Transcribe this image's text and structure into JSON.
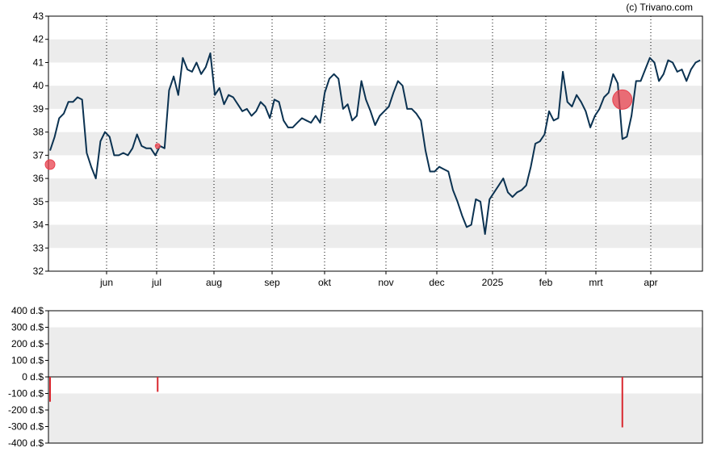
{
  "copyright": "(c) Trivano.com",
  "colors": {
    "price_line": "#0b3251",
    "band": "#ececec",
    "marker": "#e8414e",
    "bar": "#d9272e",
    "axis": "#000000"
  },
  "chart_data": [
    {
      "type": "line",
      "name": "price",
      "x_ticks": [
        "jun",
        "jul",
        "aug",
        "sep",
        "okt",
        "nov",
        "dec",
        "2025",
        "feb",
        "mrt",
        "apr"
      ],
      "y_ticks": [
        "32",
        "33",
        "34",
        "35",
        "36",
        "37",
        "38",
        "39",
        "40",
        "41",
        "42",
        "43"
      ],
      "ylim": [
        32,
        43
      ],
      "x_range": [
        0,
        285
      ],
      "grid": "dotted vertical lines at month ticks, alternating gray horizontal bands",
      "series": [
        {
          "x": [
            0,
            2,
            4,
            6,
            8,
            10,
            12,
            14,
            16,
            18,
            20,
            22,
            24,
            26,
            28,
            30,
            32,
            34,
            36,
            38,
            40,
            42,
            44,
            46,
            48,
            50,
            52,
            54,
            56,
            58,
            60,
            62,
            64,
            66,
            68,
            70,
            72,
            74,
            76,
            78,
            80,
            82,
            84,
            86,
            88,
            90,
            92,
            94,
            96,
            98,
            100,
            102,
            104,
            106,
            108,
            110,
            112,
            114,
            116,
            118,
            120,
            122,
            124,
            126,
            128,
            130,
            132,
            134,
            136,
            138,
            140,
            142,
            144,
            146,
            148,
            150,
            152,
            154,
            156,
            158,
            160,
            162,
            164,
            166,
            168,
            170,
            172,
            174,
            176,
            178,
            180,
            182,
            184,
            186,
            188,
            190,
            192,
            194,
            196,
            198,
            200,
            202,
            204,
            206,
            208,
            210,
            212,
            214,
            216,
            218,
            220,
            222,
            224,
            226,
            228,
            230,
            232,
            234,
            236,
            238,
            240,
            242,
            244,
            246,
            248,
            250,
            252,
            254,
            256,
            258,
            260,
            262,
            264,
            266,
            268,
            270,
            272,
            274,
            276,
            278,
            280,
            282,
            284
          ],
          "values": [
            37.2,
            37.8,
            38.6,
            38.8,
            39.3,
            39.3,
            39.5,
            39.4,
            37.1,
            36.5,
            36.0,
            37.6,
            38.0,
            37.8,
            37.0,
            37.0,
            37.1,
            37.0,
            37.3,
            37.9,
            37.4,
            37.3,
            37.3,
            37.0,
            37.4,
            37.3,
            39.8,
            40.4,
            39.6,
            41.2,
            40.7,
            40.6,
            41.0,
            40.5,
            40.8,
            41.4,
            39.6,
            39.9,
            39.2,
            39.6,
            39.5,
            39.2,
            38.9,
            39.0,
            38.7,
            38.9,
            39.3,
            39.1,
            38.6,
            39.4,
            39.3,
            38.5,
            38.2,
            38.2,
            38.4,
            38.6,
            38.5,
            38.4,
            38.7,
            38.4,
            39.7,
            40.3,
            40.5,
            40.3,
            39.0,
            39.2,
            38.5,
            38.7,
            40.2,
            39.4,
            38.9,
            38.3,
            38.7,
            38.9,
            39.1,
            39.7,
            40.2,
            40.0,
            39.0,
            39.0,
            38.8,
            38.5,
            37.2,
            36.3,
            36.3,
            36.5,
            36.4,
            36.3,
            35.5,
            35.0,
            34.4,
            33.9,
            34.0,
            35.1,
            35.0,
            33.6,
            35.1,
            35.4,
            35.7,
            36.0,
            35.4,
            35.2,
            35.4,
            35.5,
            35.7,
            36.5,
            37.5,
            37.6,
            37.9,
            38.9,
            38.5,
            38.6,
            40.6,
            39.3,
            39.1,
            39.6,
            39.3,
            38.9,
            38.2,
            38.7,
            39.0,
            39.5,
            39.7,
            40.5,
            40.1,
            37.7,
            37.8,
            38.7,
            40.2,
            40.2,
            40.7,
            41.2,
            41.0,
            40.2,
            40.5,
            41.1,
            41.0,
            40.6,
            40.7,
            40.2,
            40.7,
            41.0,
            41.1
          ]
        }
      ],
      "events": [
        {
          "x": 0,
          "value": 36.6,
          "size": "medium"
        },
        {
          "x": 47,
          "value": 37.4,
          "size": "small"
        },
        {
          "x": 250,
          "value": 39.4,
          "size": "large"
        }
      ]
    },
    {
      "type": "bar",
      "name": "dividends",
      "y_ticks": [
        "400 d.$",
        "300 d.$",
        "200 d.$",
        "100 d.$",
        "0 d.$",
        "-100 d.$",
        "-200 d.$",
        "-300 d.$",
        "-400 d.$"
      ],
      "ylim": [
        -400,
        400
      ],
      "bars": [
        {
          "x": 0,
          "value": -150
        },
        {
          "x": 47,
          "value": -90
        },
        {
          "x": 250,
          "value": -305
        }
      ]
    }
  ]
}
